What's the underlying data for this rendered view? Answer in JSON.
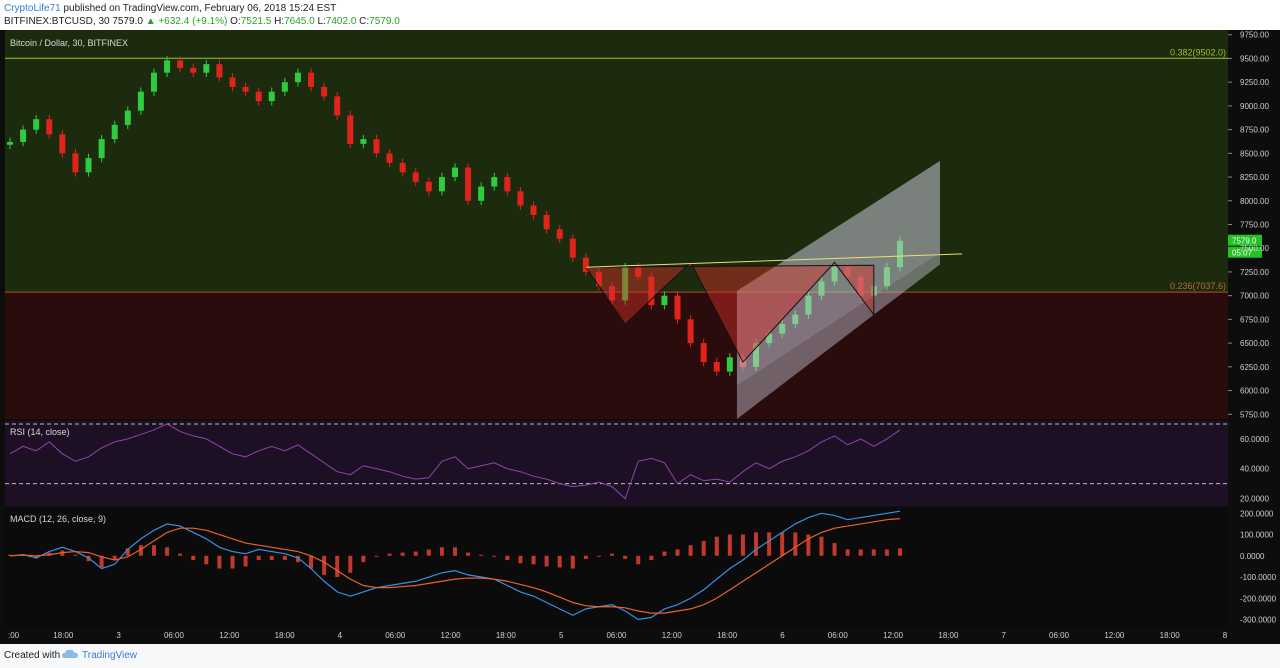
{
  "header": {
    "author": "CryptoLife71",
    "published_text": "published on TradingView.com, February 06, 2018 15:24 EST",
    "symbol": "BITFINEX:BTCUSD, 30",
    "last": "7579.0",
    "change": "+632.4 (+9.1%)",
    "open_label": "O:",
    "open": "7521.5",
    "high_label": "H:",
    "high": "7645.0",
    "low_label": "L:",
    "low": "7402.0",
    "close_label": "C:",
    "close": "7579.0"
  },
  "footer": {
    "created_with": "Created with",
    "brand": "TradingView"
  },
  "colors": {
    "bull": "#2ecc40",
    "bear": "#e0241c",
    "rsi": "#8e44ad",
    "macd": "#3a8ee6",
    "signal": "#e8612c",
    "hist": "#c0392b"
  },
  "chart_data": [
    {
      "type": "candlestick",
      "title": "Bitcoin / Dollar, 30, BITFINEX",
      "ylim": [
        5700,
        9800
      ],
      "y_ticks": [
        "9750.00",
        "9500.00",
        "9250.00",
        "9000.00",
        "8750.00",
        "8500.00",
        "8250.00",
        "8000.00",
        "7750.00",
        "7500.00",
        "7250.00",
        "7000.00",
        "6750.00",
        "6500.00",
        "6250.00",
        "6000.00",
        "5750.00"
      ],
      "x_ticks": [
        ":00",
        "18:00",
        "3",
        "06:00",
        "12:00",
        "18:00",
        "4",
        "06:00",
        "12:00",
        "18:00",
        "5",
        "06:00",
        "12:00",
        "18:00",
        "6",
        "06:00",
        "12:00",
        "18:00",
        "7",
        "06:00",
        "12:00",
        "18:00",
        "8"
      ],
      "fib_levels": [
        {
          "label": "0.382(9502.0)",
          "value": 9502
        },
        {
          "label": "0.236(7037.6)",
          "value": 7037.6
        }
      ],
      "price_tags": [
        "7579.0",
        "05:07"
      ],
      "close_values": [
        8620,
        8750,
        8860,
        8700,
        8500,
        8300,
        8450,
        8650,
        8800,
        8950,
        9150,
        9350,
        9480,
        9400,
        9350,
        9440,
        9300,
        9200,
        9150,
        9050,
        9150,
        9250,
        9350,
        9200,
        9100,
        8900,
        8600,
        8650,
        8500,
        8400,
        8300,
        8200,
        8100,
        8250,
        8350,
        8000,
        8150,
        8250,
        8100,
        7950,
        7850,
        7700,
        7600,
        7400,
        7250,
        7100,
        6950,
        7300,
        7200,
        6900,
        7000,
        6750,
        6500,
        6300,
        6200,
        6350,
        6250,
        6500,
        6600,
        6700,
        6800,
        7000,
        7150,
        7300,
        7200,
        7000,
        7100,
        7300,
        7579
      ],
      "triangle_points": [
        [
          7300,
          7300
        ],
        [
          6800,
          6700
        ],
        [
          7300,
          7350
        ],
        [
          6800,
          6300
        ]
      ]
    },
    {
      "type": "line",
      "title": "RSI (14, close)",
      "ylim": [
        15,
        72
      ],
      "y_ticks": [
        "60.0000",
        "40.0000",
        "20.0000"
      ],
      "bands": [
        70,
        30
      ],
      "series": [
        {
          "values": [
            50,
            55,
            52,
            58,
            50,
            45,
            48,
            54,
            58,
            60,
            63,
            66,
            70,
            65,
            62,
            60,
            55,
            50,
            48,
            52,
            55,
            52,
            56,
            50,
            44,
            38,
            36,
            42,
            40,
            38,
            35,
            33,
            34,
            45,
            48,
            40,
            42,
            44,
            40,
            38,
            35,
            33,
            30,
            28,
            29,
            31,
            28,
            20,
            45,
            47,
            44,
            30,
            36,
            32,
            33,
            31,
            38,
            44,
            40,
            45,
            48,
            52,
            58,
            62,
            56,
            60,
            55,
            60,
            66
          ]
        }
      ]
    },
    {
      "type": "line",
      "title": "MACD (12, 26, close, 9)",
      "ylim": [
        -340,
        225
      ],
      "y_ticks": [
        "200.0000",
        "100.0000",
        "0.0000",
        "-100.0000",
        "-200.0000",
        "-300.0000"
      ],
      "series": [
        {
          "name": "macd",
          "values": [
            0,
            5,
            -10,
            20,
            40,
            20,
            -10,
            -60,
            -40,
            30,
            80,
            120,
            150,
            140,
            110,
            80,
            40,
            20,
            10,
            30,
            20,
            10,
            -10,
            -60,
            -120,
            -170,
            -190,
            -170,
            -150,
            -140,
            -130,
            -120,
            -100,
            -80,
            -70,
            -90,
            -100,
            -110,
            -140,
            -170,
            -190,
            -220,
            -250,
            -280,
            -250,
            -240,
            -230,
            -260,
            -300,
            -290,
            -250,
            -230,
            -200,
            -160,
            -110,
            -60,
            -20,
            30,
            70,
            110,
            150,
            180,
            200,
            190,
            170,
            180,
            190,
            200,
            210
          ]
        },
        {
          "name": "signal",
          "values": [
            0,
            3,
            0,
            5,
            15,
            20,
            15,
            -5,
            -20,
            -5,
            30,
            70,
            110,
            130,
            130,
            120,
            100,
            80,
            60,
            50,
            40,
            30,
            20,
            0,
            -30,
            -70,
            -110,
            -140,
            -150,
            -150,
            -145,
            -140,
            -130,
            -120,
            -110,
            -105,
            -105,
            -110,
            -120,
            -135,
            -150,
            -170,
            -195,
            -220,
            -235,
            -240,
            -240,
            -245,
            -260,
            -270,
            -270,
            -260,
            -250,
            -230,
            -200,
            -160,
            -120,
            -80,
            -40,
            0,
            40,
            80,
            110,
            130,
            140,
            150,
            160,
            170,
            175
          ]
        }
      ],
      "histogram": [
        5,
        8,
        -12,
        15,
        25,
        5,
        -25,
        -55,
        -20,
        35,
        50,
        50,
        40,
        10,
        -20,
        -40,
        -60,
        -60,
        -50,
        -20,
        -20,
        -20,
        -30,
        -60,
        -90,
        -100,
        -80,
        -30,
        0,
        10,
        15,
        20,
        30,
        40,
        40,
        15,
        5,
        0,
        -20,
        -35,
        -40,
        -50,
        -55,
        -60,
        -15,
        0,
        10,
        -15,
        -40,
        -20,
        20,
        30,
        50,
        70,
        90,
        100,
        100,
        110,
        110,
        110,
        110,
        100,
        90,
        60,
        30,
        30,
        30,
        30,
        35
      ]
    }
  ]
}
